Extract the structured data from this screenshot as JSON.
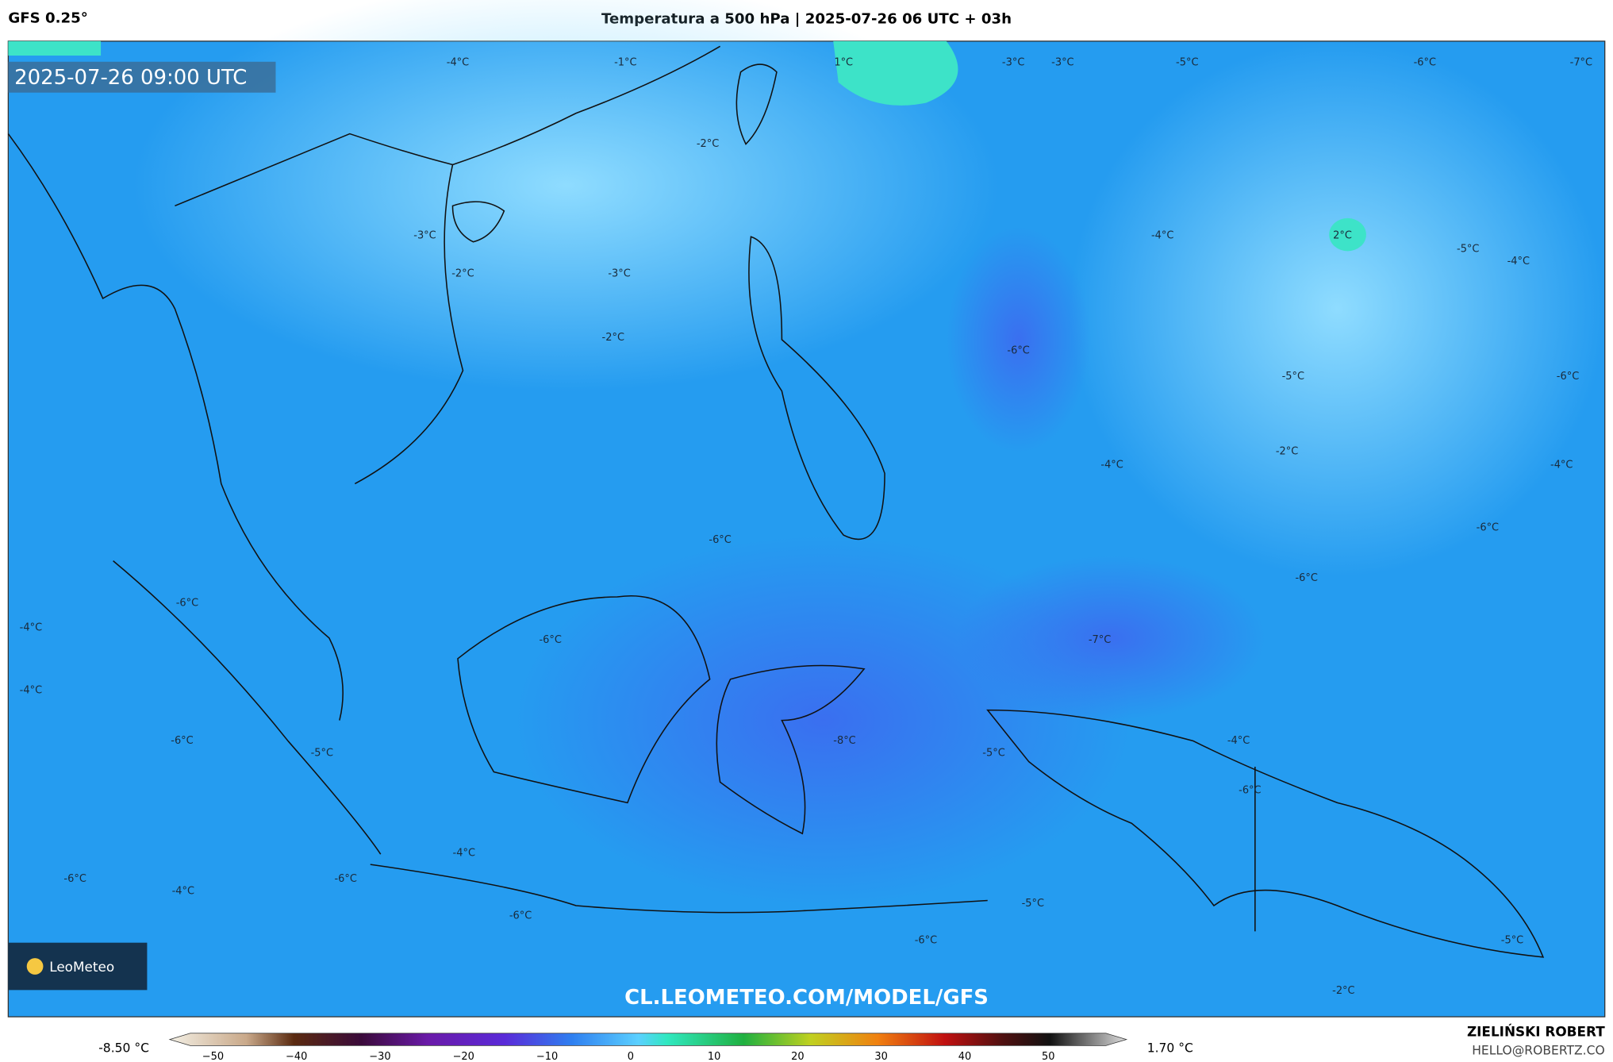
{
  "header": {
    "model": "GFS 0.25°",
    "title": "Temperatura a 500 hPa | 2025-07-26 06 UTC + 03h"
  },
  "map": {
    "timestamp": "2025-07-26 09:00 UTC",
    "watermark": "CL.LEOMETEO.COM/MODEL/GFS",
    "logo": "LeoMeteo",
    "labels": [
      "-4°C",
      "-1°C",
      "1°C",
      "-3°C",
      "-3°C",
      "-5°C",
      "-6°C",
      "-7°C",
      "-2°C",
      "-3°C",
      "-2°C",
      "-3°C",
      "-4°C",
      "2°C",
      "-5°C",
      "-4°C",
      "-2°C",
      "-6°C",
      "-5°C",
      "-6°C",
      "-2°C",
      "-4°C",
      "-4°C",
      "-6°C",
      "-6°C",
      "-6°C",
      "-6°C",
      "-4°C",
      "-6°C",
      "-7°C",
      "-4°C",
      "-6°C",
      "-4°C",
      "-8°C",
      "-5°C",
      "-5°C",
      "-6°C",
      "-4°C",
      "-6°C",
      "-6°C",
      "-4°C",
      "-6°C",
      "-5°C",
      "-6°C",
      "-5°C",
      "-2°C"
    ]
  },
  "colorbar": {
    "min_label": "-8.50 °C",
    "max_label": "1.70 °C",
    "ticks": [
      "−50",
      "−40",
      "−30",
      "−20",
      "−10",
      "0",
      "10",
      "20",
      "30",
      "40",
      "50"
    ]
  },
  "footer": {
    "author": "ZIELIŃSKI ROBERT",
    "email": "HELLO@ROBERTZ.CO"
  }
}
